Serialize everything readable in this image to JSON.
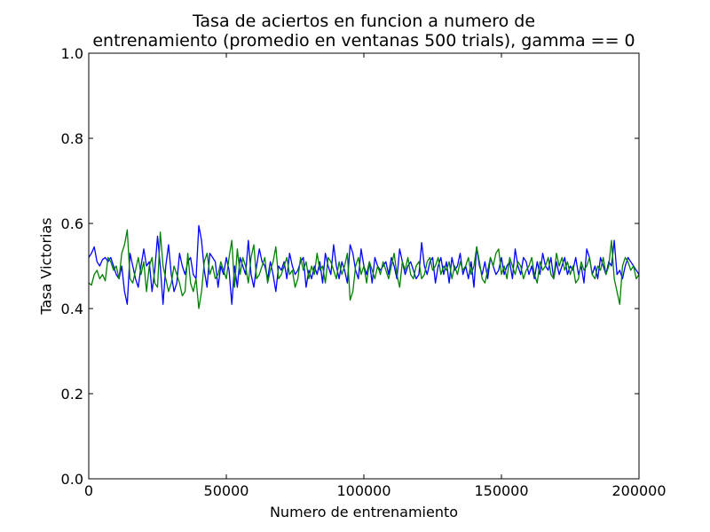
{
  "chart_data": {
    "type": "line",
    "title_lines": [
      "Tasa de aciertos en funcion a numero de",
      "entrenamiento (promedio en ventanas 500 trials), gamma == 0"
    ],
    "xlabel": "Numero de entrenamiento",
    "ylabel": "Tasa Victorias",
    "xlim": [
      0,
      200000
    ],
    "ylim": [
      0.0,
      1.0
    ],
    "xticks": [
      0,
      50000,
      100000,
      150000,
      200000
    ],
    "xtick_labels": [
      "0",
      "50000",
      "100000",
      "150000",
      "200000"
    ],
    "yticks": [
      0.0,
      0.2,
      0.4,
      0.6,
      0.8,
      1.0
    ],
    "ytick_labels": [
      "0.0",
      "0.2",
      "0.4",
      "0.6",
      "0.8",
      "1.0"
    ],
    "grid": false,
    "x_start": 0,
    "x_step": 1000,
    "series": [
      {
        "color": "#0000ff",
        "values": [
          0.52,
          0.53,
          0.545,
          0.51,
          0.5,
          0.515,
          0.52,
          0.51,
          0.52,
          0.5,
          0.48,
          0.47,
          0.5,
          0.44,
          0.41,
          0.53,
          0.5,
          0.47,
          0.45,
          0.5,
          0.54,
          0.5,
          0.51,
          0.44,
          0.49,
          0.57,
          0.5,
          0.41,
          0.5,
          0.55,
          0.48,
          0.44,
          0.46,
          0.53,
          0.5,
          0.48,
          0.51,
          0.52,
          0.48,
          0.47,
          0.595,
          0.56,
          0.49,
          0.45,
          0.53,
          0.52,
          0.51,
          0.45,
          0.5,
          0.48,
          0.52,
          0.49,
          0.41,
          0.5,
          0.45,
          0.52,
          0.5,
          0.48,
          0.56,
          0.48,
          0.45,
          0.5,
          0.54,
          0.51,
          0.5,
          0.47,
          0.51,
          0.48,
          0.44,
          0.5,
          0.49,
          0.51,
          0.47,
          0.53,
          0.5,
          0.48,
          0.49,
          0.51,
          0.52,
          0.45,
          0.49,
          0.47,
          0.5,
          0.48,
          0.51,
          0.46,
          0.53,
          0.5,
          0.48,
          0.55,
          0.5,
          0.47,
          0.51,
          0.49,
          0.46,
          0.55,
          0.53,
          0.49,
          0.47,
          0.54,
          0.5,
          0.48,
          0.51,
          0.46,
          0.52,
          0.5,
          0.49,
          0.5,
          0.51,
          0.48,
          0.52,
          0.5,
          0.47,
          0.54,
          0.51,
          0.48,
          0.5,
          0.51,
          0.49,
          0.47,
          0.48,
          0.555,
          0.5,
          0.48,
          0.51,
          0.52,
          0.46,
          0.5,
          0.52,
          0.48,
          0.51,
          0.46,
          0.52,
          0.49,
          0.5,
          0.53,
          0.48,
          0.5,
          0.47,
          0.51,
          0.45,
          0.545,
          0.5,
          0.48,
          0.51,
          0.47,
          0.52,
          0.5,
          0.48,
          0.49,
          0.52,
          0.48,
          0.5,
          0.51,
          0.47,
          0.54,
          0.5,
          0.48,
          0.52,
          0.51,
          0.48,
          0.5,
          0.47,
          0.51,
          0.48,
          0.53,
          0.5,
          0.49,
          0.52,
          0.47,
          0.51,
          0.48,
          0.5,
          0.52,
          0.48,
          0.5,
          0.49,
          0.52,
          0.48,
          0.5,
          0.46,
          0.54,
          0.52,
          0.48,
          0.5,
          0.47,
          0.52,
          0.5,
          0.48,
          0.51,
          0.5,
          0.56,
          0.48,
          0.49,
          0.47,
          0.5,
          0.52,
          0.51,
          0.5,
          0.49,
          0.48,
          0.5,
          0.525
        ]
      },
      {
        "color": "#008000",
        "values": [
          0.46,
          0.455,
          0.48,
          0.49,
          0.47,
          0.48,
          0.465,
          0.52,
          0.51,
          0.49,
          0.5,
          0.47,
          0.53,
          0.55,
          0.585,
          0.47,
          0.46,
          0.49,
          0.52,
          0.48,
          0.51,
          0.44,
          0.5,
          0.52,
          0.46,
          0.45,
          0.58,
          0.5,
          0.47,
          0.44,
          0.46,
          0.5,
          0.48,
          0.46,
          0.43,
          0.44,
          0.53,
          0.46,
          0.44,
          0.47,
          0.4,
          0.44,
          0.51,
          0.53,
          0.48,
          0.5,
          0.47,
          0.48,
          0.51,
          0.49,
          0.47,
          0.52,
          0.56,
          0.45,
          0.54,
          0.48,
          0.52,
          0.5,
          0.46,
          0.52,
          0.55,
          0.47,
          0.48,
          0.5,
          0.52,
          0.46,
          0.49,
          0.51,
          0.545,
          0.47,
          0.48,
          0.5,
          0.52,
          0.48,
          0.49,
          0.45,
          0.47,
          0.52,
          0.49,
          0.51,
          0.47,
          0.5,
          0.48,
          0.53,
          0.49,
          0.5,
          0.46,
          0.52,
          0.51,
          0.49,
          0.47,
          0.51,
          0.48,
          0.5,
          0.53,
          0.42,
          0.44,
          0.5,
          0.52,
          0.48,
          0.5,
          0.46,
          0.51,
          0.49,
          0.47,
          0.5,
          0.48,
          0.51,
          0.49,
          0.47,
          0.5,
          0.53,
          0.48,
          0.45,
          0.51,
          0.49,
          0.52,
          0.48,
          0.47,
          0.5,
          0.51,
          0.47,
          0.48,
          0.51,
          0.52,
          0.49,
          0.5,
          0.52,
          0.48,
          0.5,
          0.49,
          0.51,
          0.47,
          0.5,
          0.48,
          0.51,
          0.49,
          0.5,
          0.52,
          0.48,
          0.5,
          0.545,
          0.51,
          0.47,
          0.46,
          0.49,
          0.52,
          0.5,
          0.53,
          0.54,
          0.48,
          0.5,
          0.47,
          0.52,
          0.5,
          0.48,
          0.51,
          0.5,
          0.47,
          0.49,
          0.5,
          0.52,
          0.48,
          0.46,
          0.51,
          0.49,
          0.5,
          0.52,
          0.48,
          0.47,
          0.53,
          0.5,
          0.52,
          0.49,
          0.51,
          0.48,
          0.5,
          0.46,
          0.47,
          0.51,
          0.49,
          0.5,
          0.52,
          0.48,
          0.47,
          0.5,
          0.49,
          0.52,
          0.48,
          0.5,
          0.56,
          0.47,
          0.44,
          0.41,
          0.5,
          0.52,
          0.51,
          0.49,
          0.5,
          0.47,
          0.48,
          0.5,
          0.475
        ]
      }
    ]
  }
}
